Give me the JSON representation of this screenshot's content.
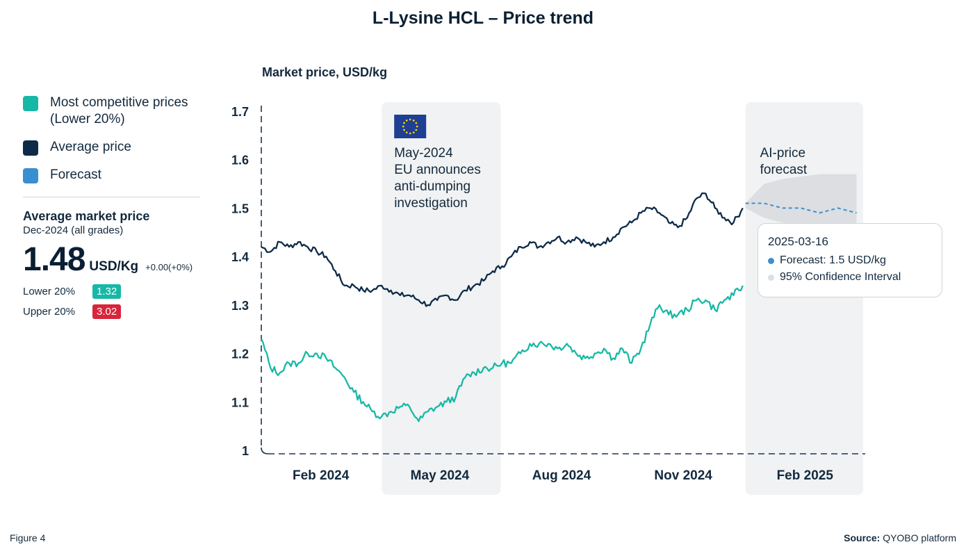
{
  "title": "L-Lysine HCL – Price trend",
  "legend": {
    "items": [
      {
        "label_line1": "Most competitive prices",
        "label_line2": "(Lower 20%)",
        "color": "#17b8a6"
      },
      {
        "label_line1": "Average price",
        "label_line2": "",
        "color": "#0d2b48"
      },
      {
        "label_line1": "Forecast",
        "label_line2": "",
        "color": "#3a8fd1"
      }
    ]
  },
  "summary": {
    "title": "Average market price",
    "subtitle": "Dec-2024 (all grades)",
    "value": "1.48",
    "unit": "USD/Kg",
    "change": "+0.00(+0%)",
    "lower_label": "Lower 20%",
    "lower_value": "1.32",
    "lower_color": "#17b8a6",
    "upper_label": "Upper 20%",
    "upper_value": "3.02",
    "upper_color": "#d9243b"
  },
  "tooltip": {
    "date": "2025-03-16",
    "forecast": "Forecast: 1.5 USD/kg",
    "ci": "95% Confidence Interval",
    "forecast_color": "#3a8fd1",
    "ci_color": "#dcdfe2"
  },
  "footer": {
    "figure": "Figure 4",
    "source_label": "Source:",
    "source_value": "QYOBO platform"
  },
  "chart_data": {
    "type": "line",
    "ylabel": "Market price, USD/kg",
    "ylim": [
      1,
      1.7
    ],
    "yticks": [
      "1",
      "1.1",
      "1.2",
      "1.3",
      "1.4",
      "1.5",
      "1.6",
      "1.7"
    ],
    "xticks": [
      "Feb 2024",
      "May 2024",
      "Aug 2024",
      "Nov 2024",
      "Feb 2025"
    ],
    "xtick_dates": [
      "2024-02-15",
      "2024-05-15",
      "2024-08-15",
      "2024-11-15",
      "2025-02-15"
    ],
    "xlim": [
      "2024-01-01",
      "2025-03-31"
    ],
    "grid": false,
    "legend_position": "left",
    "annotations": [
      {
        "type": "shaded_region",
        "from": "2024-04-01",
        "to": "2024-06-30",
        "lines": [
          "May-2024",
          "EU announces",
          "anti-dumping",
          "investigation"
        ],
        "icon": "eu-flag-icon"
      },
      {
        "type": "shaded_region",
        "from": "2025-01-01",
        "to": "2025-03-31",
        "lines": [
          "AI-price",
          "forecast"
        ]
      }
    ],
    "series": [
      {
        "name": "Average price",
        "color": "#0d2b48",
        "points": [
          [
            "2024-01-01",
            1.42
          ],
          [
            "2024-01-08",
            1.41
          ],
          [
            "2024-01-15",
            1.43
          ],
          [
            "2024-01-22",
            1.42
          ],
          [
            "2024-01-29",
            1.43
          ],
          [
            "2024-02-05",
            1.42
          ],
          [
            "2024-02-12",
            1.41
          ],
          [
            "2024-02-19",
            1.4
          ],
          [
            "2024-02-26",
            1.37
          ],
          [
            "2024-03-04",
            1.34
          ],
          [
            "2024-03-11",
            1.34
          ],
          [
            "2024-03-18",
            1.33
          ],
          [
            "2024-03-25",
            1.33
          ],
          [
            "2024-04-01",
            1.34
          ],
          [
            "2024-04-08",
            1.33
          ],
          [
            "2024-04-15",
            1.32
          ],
          [
            "2024-04-22",
            1.32
          ],
          [
            "2024-04-29",
            1.31
          ],
          [
            "2024-05-06",
            1.3
          ],
          [
            "2024-05-13",
            1.31
          ],
          [
            "2024-05-20",
            1.32
          ],
          [
            "2024-05-27",
            1.31
          ],
          [
            "2024-06-03",
            1.33
          ],
          [
            "2024-06-10",
            1.34
          ],
          [
            "2024-06-17",
            1.35
          ],
          [
            "2024-06-24",
            1.37
          ],
          [
            "2024-07-01",
            1.38
          ],
          [
            "2024-07-08",
            1.4
          ],
          [
            "2024-07-15",
            1.42
          ],
          [
            "2024-07-22",
            1.43
          ],
          [
            "2024-07-29",
            1.42
          ],
          [
            "2024-08-05",
            1.43
          ],
          [
            "2024-08-12",
            1.44
          ],
          [
            "2024-08-19",
            1.43
          ],
          [
            "2024-08-26",
            1.44
          ],
          [
            "2024-09-02",
            1.43
          ],
          [
            "2024-09-09",
            1.42
          ],
          [
            "2024-09-16",
            1.43
          ],
          [
            "2024-09-23",
            1.44
          ],
          [
            "2024-09-30",
            1.46
          ],
          [
            "2024-10-07",
            1.47
          ],
          [
            "2024-10-14",
            1.49
          ],
          [
            "2024-10-21",
            1.5
          ],
          [
            "2024-10-28",
            1.49
          ],
          [
            "2024-11-04",
            1.47
          ],
          [
            "2024-11-11",
            1.46
          ],
          [
            "2024-11-18",
            1.48
          ],
          [
            "2024-11-25",
            1.52
          ],
          [
            "2024-12-02",
            1.53
          ],
          [
            "2024-12-09",
            1.5
          ],
          [
            "2024-12-16",
            1.48
          ],
          [
            "2024-12-23",
            1.47
          ],
          [
            "2024-12-30",
            1.5
          ]
        ]
      },
      {
        "name": "Most competitive prices (Lower 20%)",
        "color": "#17b8a6",
        "points": [
          [
            "2024-01-01",
            1.23
          ],
          [
            "2024-01-08",
            1.17
          ],
          [
            "2024-01-15",
            1.16
          ],
          [
            "2024-01-22",
            1.18
          ],
          [
            "2024-01-29",
            1.18
          ],
          [
            "2024-02-05",
            1.2
          ],
          [
            "2024-02-12",
            1.2
          ],
          [
            "2024-02-19",
            1.19
          ],
          [
            "2024-02-26",
            1.17
          ],
          [
            "2024-03-04",
            1.15
          ],
          [
            "2024-03-11",
            1.12
          ],
          [
            "2024-03-18",
            1.1
          ],
          [
            "2024-03-25",
            1.08
          ],
          [
            "2024-04-01",
            1.07
          ],
          [
            "2024-04-08",
            1.08
          ],
          [
            "2024-04-15",
            1.09
          ],
          [
            "2024-04-22",
            1.09
          ],
          [
            "2024-04-29",
            1.06
          ],
          [
            "2024-05-06",
            1.08
          ],
          [
            "2024-05-13",
            1.09
          ],
          [
            "2024-05-20",
            1.1
          ],
          [
            "2024-05-27",
            1.11
          ],
          [
            "2024-06-03",
            1.15
          ],
          [
            "2024-06-10",
            1.16
          ],
          [
            "2024-06-17",
            1.17
          ],
          [
            "2024-06-24",
            1.17
          ],
          [
            "2024-07-01",
            1.18
          ],
          [
            "2024-07-08",
            1.18
          ],
          [
            "2024-07-15",
            1.2
          ],
          [
            "2024-07-22",
            1.22
          ],
          [
            "2024-07-29",
            1.22
          ],
          [
            "2024-08-05",
            1.22
          ],
          [
            "2024-08-12",
            1.21
          ],
          [
            "2024-08-19",
            1.22
          ],
          [
            "2024-08-26",
            1.2
          ],
          [
            "2024-09-02",
            1.19
          ],
          [
            "2024-09-09",
            1.2
          ],
          [
            "2024-09-16",
            1.21
          ],
          [
            "2024-09-23",
            1.19
          ],
          [
            "2024-09-30",
            1.21
          ],
          [
            "2024-10-07",
            1.18
          ],
          [
            "2024-10-14",
            1.21
          ],
          [
            "2024-10-21",
            1.26
          ],
          [
            "2024-10-28",
            1.3
          ],
          [
            "2024-11-04",
            1.28
          ],
          [
            "2024-11-11",
            1.28
          ],
          [
            "2024-11-18",
            1.29
          ],
          [
            "2024-11-25",
            1.31
          ],
          [
            "2024-12-02",
            1.31
          ],
          [
            "2024-12-09",
            1.29
          ],
          [
            "2024-12-16",
            1.31
          ],
          [
            "2024-12-23",
            1.32
          ],
          [
            "2024-12-30",
            1.34
          ]
        ]
      },
      {
        "name": "Forecast",
        "color": "#3a8fd1",
        "points": [
          [
            "2025-01-01",
            1.51
          ],
          [
            "2025-01-15",
            1.51
          ],
          [
            "2025-01-29",
            1.5
          ],
          [
            "2025-02-12",
            1.5
          ],
          [
            "2025-02-26",
            1.49
          ],
          [
            "2025-03-12",
            1.5
          ],
          [
            "2025-03-26",
            1.49
          ]
        ],
        "ci_upper": [
          1.51,
          1.55,
          1.56,
          1.565,
          1.57,
          1.57,
          1.57
        ],
        "ci_lower": [
          1.5,
          1.48,
          1.47,
          1.465,
          1.46,
          1.46,
          1.46
        ]
      }
    ]
  }
}
